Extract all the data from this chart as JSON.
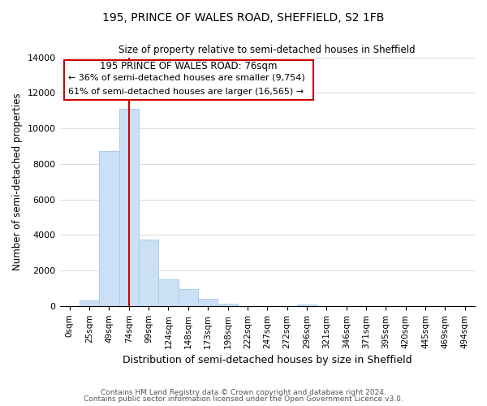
{
  "title": "195, PRINCE OF WALES ROAD, SHEFFIELD, S2 1FB",
  "subtitle": "Size of property relative to semi-detached houses in Sheffield",
  "xlabel": "Distribution of semi-detached houses by size in Sheffield",
  "ylabel": "Number of semi-detached properties",
  "bar_labels": [
    "0sqm",
    "25sqm",
    "49sqm",
    "74sqm",
    "99sqm",
    "124sqm",
    "148sqm",
    "173sqm",
    "198sqm",
    "222sqm",
    "247sqm",
    "272sqm",
    "296sqm",
    "321sqm",
    "346sqm",
    "371sqm",
    "395sqm",
    "420sqm",
    "445sqm",
    "469sqm",
    "494sqm"
  ],
  "bar_values": [
    0,
    300,
    8700,
    11100,
    3750,
    1500,
    950,
    400,
    130,
    0,
    0,
    0,
    100,
    0,
    0,
    0,
    0,
    0,
    0,
    0,
    0
  ],
  "bar_color": "#cce0f5",
  "bar_edge_color": "#aaccee",
  "vline_x": 3,
  "vline_color": "#cc0000",
  "annotation_title": "195 PRINCE OF WALES ROAD: 76sqm",
  "annotation_line1": "← 36% of semi-detached houses are smaller (9,754)",
  "annotation_line2": "61% of semi-detached houses are larger (16,565) →",
  "annotation_box_edge": "#cc0000",
  "ylim": [
    0,
    14000
  ],
  "yticks": [
    0,
    2000,
    4000,
    6000,
    8000,
    10000,
    12000,
    14000
  ],
  "footer1": "Contains HM Land Registry data © Crown copyright and database right 2024.",
  "footer2": "Contains public sector information licensed under the Open Government Licence v3.0.",
  "background_color": "#ffffff",
  "grid_color": "#dddddd"
}
